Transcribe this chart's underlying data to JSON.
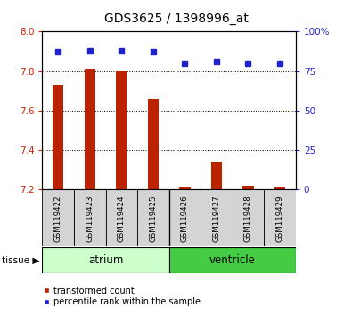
{
  "title": "GDS3625 / 1398996_at",
  "samples": [
    "GSM119422",
    "GSM119423",
    "GSM119424",
    "GSM119425",
    "GSM119426",
    "GSM119427",
    "GSM119428",
    "GSM119429"
  ],
  "transformed_count": [
    7.73,
    7.81,
    7.8,
    7.66,
    7.21,
    7.34,
    7.22,
    7.21
  ],
  "percentile_rank": [
    87,
    88,
    88,
    87,
    80,
    81,
    80,
    80
  ],
  "y_min": 7.2,
  "y_max": 8.0,
  "y_ticks": [
    7.2,
    7.4,
    7.6,
    7.8,
    8.0
  ],
  "y2_ticks": [
    0,
    25,
    50,
    75,
    100
  ],
  "bar_color": "#bb2200",
  "dot_color": "#2222cc",
  "bar_bottom": 7.2,
  "tissue_groups": [
    {
      "label": "atrium",
      "start": 0,
      "end": 4,
      "color": "#ccffcc"
    },
    {
      "label": "ventricle",
      "start": 4,
      "end": 8,
      "color": "#44cc44"
    }
  ],
  "legend_items": [
    {
      "label": "transformed count",
      "color": "#bb2200"
    },
    {
      "label": "percentile rank within the sample",
      "color": "#2222cc"
    }
  ],
  "grid_linestyle": "dotted",
  "sample_box_color": "#d4d4d4",
  "atrium_separator": 4
}
